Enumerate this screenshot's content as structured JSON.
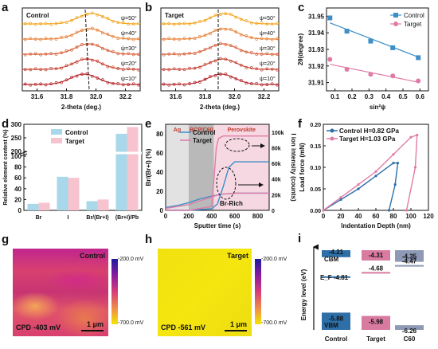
{
  "panels": {
    "a": {
      "label": "a",
      "legend": "Control",
      "xlabel": "2-theta (deg.)",
      "xticks": [
        "31.6",
        "31.8",
        "32.0",
        "32.2"
      ],
      "psi_labels": [
        "ψ=50°",
        "ψ=40°",
        "ψ=30°",
        "ψ=20°",
        "ψ=10°"
      ],
      "colors": [
        "#F5A623",
        "#E8823A",
        "#D9603A",
        "#C94436",
        "#B8292E"
      ]
    },
    "b": {
      "label": "b",
      "legend": "Target",
      "xlabel": "2-theta (deg.)",
      "xticks": [
        "31.6",
        "31.8",
        "32.0",
        "32.2"
      ],
      "psi_labels": [
        "ψ=50°",
        "ψ=40°",
        "ψ=30°",
        "ψ=20°",
        "ψ=10°"
      ],
      "colors": [
        "#F5A623",
        "#E8823A",
        "#D9603A",
        "#C94436",
        "#B8292E"
      ]
    },
    "c": {
      "label": "c",
      "ylabel": "2θ(degree)",
      "xlabel": "sin²ψ",
      "yticks": [
        "31.95",
        "31.94",
        "31.93",
        "31.92",
        "31.91"
      ],
      "xticks": [
        "0.1",
        "0.2",
        "0.3",
        "0.4",
        "0.5",
        "0.6"
      ],
      "legend": [
        "Control",
        "Target"
      ],
      "colors": {
        "control": "#3E8FC6",
        "target": "#E07BA6"
      }
    },
    "d": {
      "label": "d",
      "ylabel": "Relative element content (%)",
      "legend": [
        "Control",
        "Target"
      ],
      "yticks": [
        "300",
        "250",
        "200",
        "100",
        "80",
        "60",
        "40",
        "20",
        "0"
      ],
      "categories": [
        "Br",
        "I",
        "Br/(Br+I)",
        "(Br+I)/Pb"
      ],
      "colors": {
        "control": "#A8D8EA",
        "target": "#F7C3CF"
      }
    },
    "e": {
      "label": "e",
      "ylabel_left": "Br/(Br+I) (%)",
      "ylabel_right": "I ion intensity (counts)",
      "xlabel": "Sputter time (s)",
      "yticks_left": [
        "0",
        "20",
        "40",
        "60",
        "80"
      ],
      "yticks_right": [
        "0",
        "20k",
        "40k",
        "60k",
        "80k",
        "100k"
      ],
      "xticks": [
        "0",
        "200",
        "400",
        "600",
        "800"
      ],
      "legend": [
        "Control",
        "Target"
      ],
      "regions": [
        "Ag",
        "BCP/C60",
        "Perovskite"
      ],
      "annotation": "Br-Rich",
      "colors": {
        "control": "#3E8FC6",
        "target": "#E07BA6"
      }
    },
    "f": {
      "label": "f",
      "ylabel": "Load force (mN)",
      "xlabel": "Indentation Depth (nm)",
      "yticks": [
        "0.00",
        "0.05",
        "0.10",
        "0.15",
        "0.20"
      ],
      "xticks": [
        "0",
        "20",
        "40",
        "60",
        "80",
        "100",
        "120"
      ],
      "legend": [
        "Control H=0.82 GPa",
        "Target H=1.03 GPa"
      ],
      "colors": {
        "control": "#2E6FA7",
        "target": "#E07BA6"
      }
    },
    "g": {
      "label": "g",
      "title": "Control",
      "caption": "CPD -403 mV",
      "scale": "1 μm",
      "scale_top": "-200.0 mV",
      "scale_bottom": "-700.0 mV"
    },
    "h": {
      "label": "h",
      "title": "Target",
      "caption": "CPD -561 mV",
      "scale": "1 μm",
      "scale_top": "-200.0 mV",
      "scale_bottom": "-700.0 mV"
    },
    "i": {
      "label": "i",
      "ylabel": "Energy level (eV)",
      "cbm_label": "CBM",
      "vbm_label": "VBM",
      "ef_label": "E_F",
      "columns": [
        "Control",
        "Target",
        "C60"
      ],
      "cbm_values": [
        "-4.21",
        "-4.31",
        "-4.35"
      ],
      "ef_values": [
        "-4.81",
        "-4.68",
        "-4.47"
      ],
      "vbm_values": [
        "-5.88",
        "-5.98",
        "-6.26"
      ],
      "colors": {
        "control": "#2E6FA7",
        "target": "#D97AA0",
        "c60": "#8E99B5"
      }
    }
  },
  "chart_data": [
    {
      "type": "line",
      "title": "Control",
      "xlabel": "2-theta (deg.)",
      "xlim": [
        31.5,
        32.3
      ],
      "series": [
        {
          "name": "ψ=50°",
          "peak_x": 31.97
        },
        {
          "name": "ψ=40°",
          "peak_x": 31.96
        },
        {
          "name": "ψ=30°",
          "peak_x": 31.95
        },
        {
          "name": "ψ=20°",
          "peak_x": 31.94
        },
        {
          "name": "ψ=10°",
          "peak_x": 31.92
        }
      ]
    },
    {
      "type": "line",
      "title": "Target",
      "xlabel": "2-theta (deg.)",
      "xlim": [
        31.5,
        32.3
      ],
      "series": [
        {
          "name": "ψ=50°",
          "peak_x": 31.93
        },
        {
          "name": "ψ=40°",
          "peak_x": 31.93
        },
        {
          "name": "ψ=30°",
          "peak_x": 31.92
        },
        {
          "name": "ψ=20°",
          "peak_x": 31.92
        },
        {
          "name": "ψ=10°",
          "peak_x": 31.91
        }
      ]
    },
    {
      "type": "scatter",
      "xlabel": "sin²ψ",
      "ylabel": "2θ(degree)",
      "xlim": [
        0.05,
        0.65
      ],
      "ylim": [
        31.905,
        31.955
      ],
      "series": [
        {
          "name": "Control",
          "x": [
            0.07,
            0.17,
            0.31,
            0.44,
            0.59
          ],
          "y": [
            31.949,
            31.941,
            31.935,
            31.931,
            31.925
          ],
          "fit": [
            [
              0.07,
              31.946
            ],
            [
              0.6,
              31.925
            ]
          ]
        },
        {
          "name": "Target",
          "x": [
            0.07,
            0.17,
            0.31,
            0.44,
            0.59
          ],
          "y": [
            31.924,
            31.918,
            31.915,
            31.914,
            31.911
          ],
          "fit": [
            [
              0.07,
              31.921
            ],
            [
              0.6,
              31.91
            ]
          ]
        }
      ]
    },
    {
      "type": "bar",
      "ylabel": "Relative element content (%)",
      "categories": [
        "Br",
        "I",
        "Br/(Br+I)",
        "(Br+I)/Pb"
      ],
      "series": [
        {
          "name": "Control",
          "values": [
            12,
            62,
            17,
            265
          ]
        },
        {
          "name": "Target",
          "values": [
            14,
            60,
            20,
            290
          ]
        }
      ]
    },
    {
      "type": "line",
      "xlabel": "Sputter time (s)",
      "ylabel": "Br/(Br+I) (%)",
      "ylabel_right": "I ion intensity (counts)",
      "xlim": [
        0,
        900
      ],
      "ylim": [
        0,
        90
      ],
      "ylim_right": [
        0,
        110000
      ],
      "series": [
        {
          "name": "Control Br/(Br+I)",
          "x": [
            0,
            100,
            200,
            300,
            400,
            450,
            500,
            600,
            700,
            800,
            900
          ],
          "y": [
            3,
            5,
            8,
            12,
            15,
            16,
            17,
            18,
            18,
            18,
            18
          ]
        },
        {
          "name": "Target Br/(Br+I)",
          "x": [
            0,
            100,
            200,
            300,
            400,
            450,
            500,
            600,
            700,
            800,
            900
          ],
          "y": [
            2,
            4,
            6,
            10,
            14,
            16,
            17,
            18,
            18,
            18,
            18
          ]
        },
        {
          "name": "Control I intensity",
          "x": [
            0,
            200,
            400,
            450,
            500,
            550,
            600,
            700,
            800,
            900
          ],
          "y": [
            0,
            0,
            2000,
            8000,
            30000,
            55000,
            62000,
            62000,
            62000,
            62000
          ]
        },
        {
          "name": "Target I intensity",
          "x": [
            0,
            200,
            400,
            420,
            440,
            460,
            500,
            600,
            800,
            900
          ],
          "y": [
            0,
            0,
            5000,
            40000,
            80000,
            92000,
            95000,
            95000,
            95000,
            95000
          ]
        }
      ]
    },
    {
      "type": "line",
      "xlabel": "Indentation Depth (nm)",
      "ylabel": "Load force (mN)",
      "xlim": [
        0,
        120
      ],
      "ylim": [
        0,
        0.2
      ],
      "series": [
        {
          "name": "Control H=0.82 GPa",
          "x": [
            0,
            20,
            40,
            60,
            80,
            85,
            82,
            75
          ],
          "y": [
            0,
            0.025,
            0.05,
            0.08,
            0.11,
            0.11,
            0.06,
            0
          ]
        },
        {
          "name": "Target H=1.03 GPa",
          "x": [
            0,
            20,
            40,
            60,
            80,
            100,
            107,
            105,
            95
          ],
          "y": [
            0,
            0.03,
            0.06,
            0.09,
            0.13,
            0.17,
            0.175,
            0.1,
            0
          ]
        }
      ]
    }
  ]
}
